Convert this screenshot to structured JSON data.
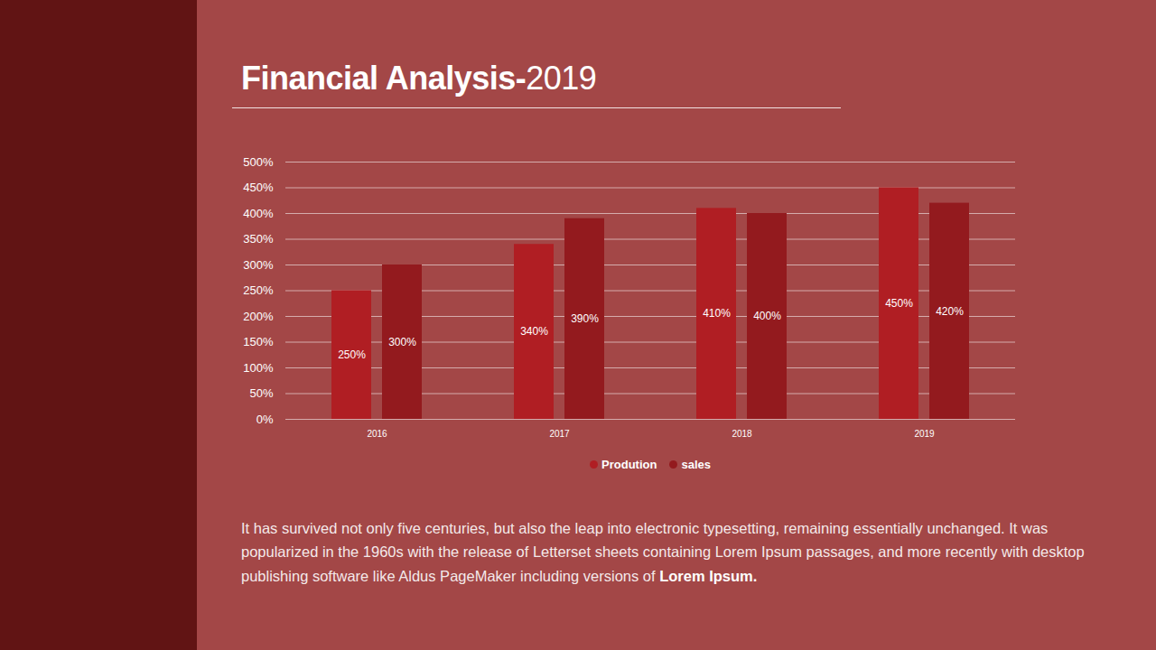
{
  "chart_data": {
    "type": "bar",
    "title": "Financial Analysis-2019",
    "caption": {
      "text": "It has survived not only five centuries, but also the leap into electronic typesetting, remaining essentially unchanged. It was popularized in the 1960s with the release of Letterset sheets containing Lorem Ipsum passages, and more recently with desktop publishing software like Aldus PageMaker including versions of",
      "emphasis": "Lorem Ipsum."
    },
    "categories": [
      "2016",
      "2017",
      "2018",
      "2019"
    ],
    "series": [
      {
        "name": "Prodution",
        "color": "#b01e23",
        "values": [
          250,
          340,
          410,
          450
        ],
        "value_labels": [
          "250%",
          "340%",
          "410%",
          "450%"
        ]
      },
      {
        "name": "sales",
        "color": "#931a1e",
        "values": [
          300,
          390,
          400,
          420
        ],
        "value_labels": [
          "300%",
          "390%",
          "400%",
          "420%"
        ]
      }
    ],
    "ylim": [
      0,
      500
    ],
    "yticks": [
      {
        "value": 0,
        "label": "0%"
      },
      {
        "value": 50,
        "label": "50%"
      },
      {
        "value": 100,
        "label": "100%"
      },
      {
        "value": 150,
        "label": "150%"
      },
      {
        "value": 200,
        "label": "200%"
      },
      {
        "value": 250,
        "label": "250%"
      },
      {
        "value": 300,
        "label": "300%"
      },
      {
        "value": 350,
        "label": "350%"
      },
      {
        "value": 400,
        "label": "400%"
      },
      {
        "value": 450,
        "label": "450%"
      },
      {
        "value": 500,
        "label": "500%"
      }
    ],
    "grid": true,
    "data_labels": true,
    "legend": "bottom"
  }
}
